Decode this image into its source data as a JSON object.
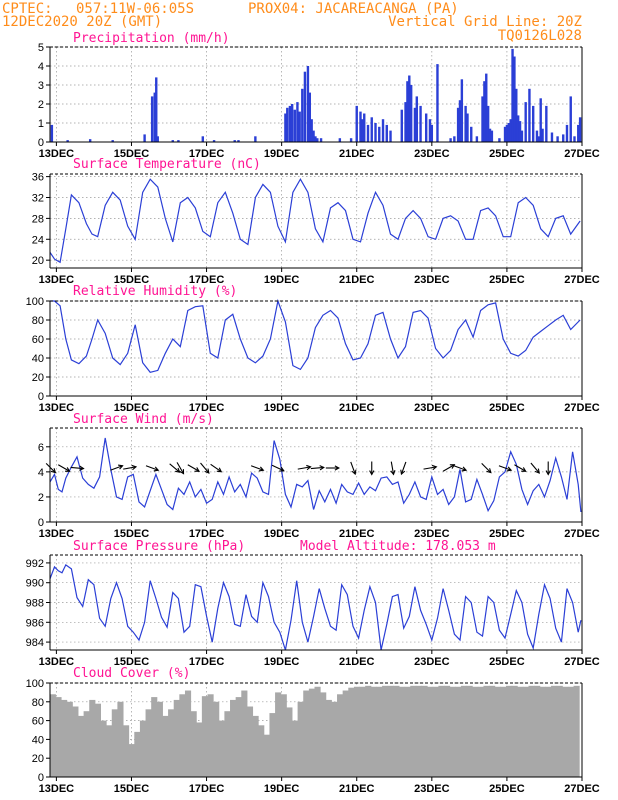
{
  "header": {
    "line1_left": "CPTEC:",
    "line1_coords": "057:11W-06:05S",
    "line1_station": "PROX04: JACAREACANGA (PA)",
    "line2_left": "12DEC2020 20Z (GMT)",
    "line2_right": "Vertical Grid Line: 20Z",
    "line3_right": "TQ0126L028"
  },
  "x_axis": {
    "ticks": [
      "13DEC",
      "15DEC",
      "17DEC",
      "19DEC",
      "21DEC",
      "23DEC",
      "25DEC",
      "27DEC"
    ],
    "tick_days": [
      13,
      15,
      17,
      19,
      21,
      23,
      25,
      27
    ],
    "start_day": 12.83,
    "end_day": 27.0
  },
  "colors": {
    "header": "#ff8c1a",
    "title": "#ff1493",
    "series": "#2b3fd6",
    "cloud": "#a8a8a8"
  },
  "chart_data": [
    {
      "type": "bar",
      "title": "Precipitation (mm/h)",
      "ylim": [
        0,
        5
      ],
      "yticks": [
        0,
        1,
        2,
        3,
        4,
        5
      ],
      "x": [
        12.88,
        13.3,
        13.9,
        14.5,
        15.35,
        15.55,
        15.62,
        15.66,
        15.7,
        16.1,
        16.25,
        16.9,
        17.2,
        17.75,
        17.85,
        18.3,
        19.1,
        19.15,
        19.22,
        19.28,
        19.35,
        19.42,
        19.48,
        19.55,
        19.62,
        19.7,
        19.75,
        19.8,
        19.85,
        19.9,
        19.95,
        20.05,
        20.55,
        20.85,
        21.0,
        21.1,
        21.15,
        21.2,
        21.3,
        21.4,
        21.5,
        21.6,
        21.7,
        21.8,
        21.9,
        22.2,
        22.3,
        22.35,
        22.4,
        22.45,
        22.55,
        22.6,
        22.7,
        22.85,
        22.95,
        23.0,
        23.15,
        23.5,
        23.6,
        23.7,
        23.75,
        23.8,
        23.9,
        23.95,
        24.05,
        24.2,
        24.35,
        24.4,
        24.45,
        24.5,
        24.55,
        24.6,
        24.8,
        24.95,
        25.0,
        25.05,
        25.1,
        25.15,
        25.2,
        25.25,
        25.3,
        25.35,
        25.4,
        25.5,
        25.6,
        25.7,
        25.8,
        25.85,
        25.9,
        25.95,
        26.05,
        26.2,
        26.35,
        26.5,
        26.6,
        26.7,
        26.8,
        26.9,
        26.95
      ],
      "values": [
        0.9,
        0.1,
        0.15,
        0.1,
        0.4,
        2.4,
        2.6,
        3.4,
        0.3,
        0.1,
        0.1,
        0.3,
        0.1,
        0.1,
        0.1,
        0.3,
        1.5,
        1.8,
        1.9,
        2.0,
        1.7,
        2.1,
        1.6,
        2.8,
        3.7,
        4.0,
        2.6,
        1.2,
        0.6,
        0.3,
        0.2,
        0.2,
        0.2,
        0.2,
        1.9,
        1.6,
        1.2,
        1.5,
        0.9,
        1.3,
        1.0,
        0.8,
        1.2,
        0.9,
        0.6,
        1.7,
        2.1,
        3.2,
        3.5,
        3.0,
        1.8,
        2.4,
        1.9,
        1.5,
        1.2,
        0.9,
        4.1,
        0.2,
        0.3,
        1.8,
        2.2,
        3.3,
        1.9,
        1.5,
        0.8,
        0.3,
        2.4,
        3.2,
        3.6,
        1.9,
        0.7,
        0.6,
        0.2,
        0.8,
        0.9,
        1.0,
        1.2,
        4.9,
        4.5,
        2.8,
        1.4,
        1.1,
        0.6,
        2.1,
        2.8,
        1.9,
        0.6,
        0.3,
        2.3,
        0.7,
        1.9,
        0.5,
        0.3,
        0.4,
        0.9,
        2.4,
        0.3,
        0.9,
        1.3
      ]
    },
    {
      "type": "line",
      "title": "Surface Temperature (nC)",
      "ylim": [
        18.5,
        36.5
      ],
      "yticks": [
        20,
        24,
        28,
        32,
        36
      ],
      "x": [
        12.83,
        12.95,
        13.1,
        13.25,
        13.4,
        13.6,
        13.8,
        13.95,
        14.1,
        14.3,
        14.5,
        14.7,
        14.9,
        15.1,
        15.3,
        15.5,
        15.7,
        15.9,
        16.1,
        16.3,
        16.5,
        16.7,
        16.9,
        17.1,
        17.3,
        17.5,
        17.7,
        17.9,
        18.1,
        18.3,
        18.5,
        18.7,
        18.9,
        19.1,
        19.3,
        19.5,
        19.7,
        19.9,
        20.1,
        20.3,
        20.5,
        20.7,
        20.9,
        21.1,
        21.3,
        21.5,
        21.7,
        21.9,
        22.1,
        22.3,
        22.5,
        22.7,
        22.9,
        23.1,
        23.3,
        23.5,
        23.7,
        23.9,
        24.1,
        24.3,
        24.5,
        24.7,
        24.9,
        25.1,
        25.3,
        25.5,
        25.7,
        25.9,
        26.1,
        26.3,
        26.5,
        26.7,
        26.95
      ],
      "values": [
        21.5,
        20.2,
        19.6,
        26.0,
        32.5,
        31.0,
        27.0,
        25.0,
        24.5,
        30.5,
        33.0,
        31.5,
        26.5,
        24.0,
        33.0,
        35.5,
        34.0,
        28.0,
        23.5,
        31.0,
        32.0,
        30.0,
        25.5,
        24.5,
        31.0,
        33.0,
        29.0,
        24.0,
        23.0,
        32.0,
        34.5,
        33.0,
        26.5,
        23.5,
        33.0,
        35.5,
        33.0,
        26.0,
        23.5,
        30.0,
        31.0,
        29.5,
        24.0,
        23.5,
        29.0,
        33.0,
        30.5,
        25.0,
        24.0,
        28.0,
        29.5,
        28.0,
        24.5,
        24.0,
        28.0,
        28.5,
        27.5,
        24.0,
        24.0,
        29.5,
        30.0,
        28.5,
        24.5,
        24.5,
        31.0,
        32.0,
        30.5,
        26.0,
        24.5,
        28.0,
        28.5,
        25.0,
        27.5
      ]
    },
    {
      "type": "line",
      "title": "Relative Humidity (%)",
      "ylim": [
        0,
        100
      ],
      "yticks": [
        0,
        20,
        40,
        60,
        80,
        100
      ],
      "x": [
        12.83,
        12.95,
        13.1,
        13.25,
        13.4,
        13.6,
        13.8,
        13.95,
        14.1,
        14.3,
        14.5,
        14.7,
        14.9,
        15.1,
        15.3,
        15.5,
        15.7,
        15.9,
        16.1,
        16.3,
        16.5,
        16.7,
        16.9,
        17.1,
        17.3,
        17.5,
        17.7,
        17.9,
        18.1,
        18.3,
        18.5,
        18.7,
        18.9,
        19.1,
        19.3,
        19.5,
        19.7,
        19.9,
        20.1,
        20.3,
        20.5,
        20.7,
        20.9,
        21.1,
        21.3,
        21.5,
        21.7,
        21.9,
        22.1,
        22.3,
        22.5,
        22.7,
        22.9,
        23.1,
        23.3,
        23.5,
        23.7,
        23.9,
        24.1,
        24.3,
        24.5,
        24.7,
        24.9,
        25.1,
        25.3,
        25.5,
        25.7,
        25.9,
        26.1,
        26.3,
        26.5,
        26.7,
        26.95
      ],
      "values": [
        100,
        100,
        95,
        60,
        38,
        34,
        42,
        60,
        80,
        66,
        40,
        33,
        45,
        75,
        35,
        25,
        27,
        45,
        60,
        52,
        90,
        94,
        95,
        45,
        40,
        80,
        86,
        60,
        40,
        35,
        42,
        60,
        100,
        78,
        32,
        28,
        40,
        72,
        85,
        90,
        82,
        55,
        38,
        40,
        55,
        85,
        88,
        60,
        40,
        52,
        88,
        90,
        82,
        50,
        40,
        48,
        70,
        80,
        62,
        90,
        96,
        98,
        60,
        45,
        42,
        48,
        62,
        68,
        74,
        80,
        85,
        70,
        80
      ]
    },
    {
      "type": "line",
      "title": "Surface Wind (m/s)",
      "ylim": [
        0,
        7.5
      ],
      "yticks": [
        0,
        2,
        4,
        6
      ],
      "x": [
        12.83,
        12.95,
        13.05,
        13.15,
        13.25,
        13.4,
        13.55,
        13.7,
        13.85,
        14.0,
        14.15,
        14.3,
        14.45,
        14.6,
        14.75,
        14.9,
        15.05,
        15.2,
        15.35,
        15.5,
        15.65,
        15.8,
        15.95,
        16.1,
        16.25,
        16.4,
        16.55,
        16.7,
        16.85,
        17.0,
        17.15,
        17.3,
        17.45,
        17.6,
        17.75,
        17.9,
        18.05,
        18.2,
        18.35,
        18.5,
        18.65,
        18.8,
        18.95,
        19.1,
        19.25,
        19.4,
        19.55,
        19.7,
        19.85,
        20.0,
        20.15,
        20.3,
        20.45,
        20.6,
        20.75,
        20.9,
        21.05,
        21.2,
        21.35,
        21.5,
        21.65,
        21.8,
        21.95,
        22.1,
        22.25,
        22.4,
        22.55,
        22.7,
        22.85,
        23.0,
        23.15,
        23.3,
        23.45,
        23.6,
        23.75,
        23.9,
        24.05,
        24.2,
        24.35,
        24.5,
        24.65,
        24.8,
        24.95,
        25.1,
        25.25,
        25.4,
        25.55,
        25.7,
        25.85,
        26.0,
        26.15,
        26.3,
        26.45,
        26.6,
        26.75,
        26.9,
        26.97
      ],
      "values": [
        3.2,
        3.8,
        2.6,
        2.4,
        3.5,
        4.4,
        5.2,
        3.5,
        3.0,
        2.7,
        3.6,
        6.7,
        4.2,
        2.0,
        1.8,
        3.6,
        3.8,
        1.6,
        1.2,
        2.5,
        3.8,
        2.6,
        1.4,
        1.0,
        2.7,
        2.2,
        3.2,
        2.0,
        2.6,
        1.5,
        1.8,
        3.2,
        2.2,
        3.6,
        2.4,
        3.0,
        2.0,
        3.9,
        3.5,
        2.4,
        2.2,
        6.5,
        5.0,
        2.2,
        1.2,
        3.0,
        2.8,
        3.3,
        1.0,
        2.5,
        1.6,
        2.6,
        1.5,
        3.0,
        2.4,
        2.2,
        3.1,
        2.2,
        2.8,
        2.5,
        3.5,
        3.6,
        3.0,
        3.2,
        1.5,
        2.2,
        3.2,
        2.0,
        1.8,
        3.6,
        2.2,
        2.6,
        1.4,
        2.0,
        4.2,
        1.6,
        1.8,
        3.4,
        2.2,
        0.9,
        1.7,
        3.6,
        4.0,
        5.6,
        4.6,
        2.6,
        1.4,
        2.5,
        3.0,
        2.0,
        3.3,
        5.1,
        3.6,
        1.8,
        5.6,
        3.0,
        0.8
      ]
    },
    {
      "type": "line",
      "title": "Surface Pressure (hPa)",
      "subtitle": "Model Altitude: 178.053 m",
      "ylim": [
        983.2,
        992.8
      ],
      "yticks": [
        984,
        986,
        988,
        990,
        992
      ],
      "x": [
        12.83,
        12.95,
        13.05,
        13.15,
        13.25,
        13.4,
        13.55,
        13.7,
        13.85,
        14.0,
        14.15,
        14.3,
        14.45,
        14.6,
        14.75,
        14.9,
        15.05,
        15.2,
        15.35,
        15.5,
        15.65,
        15.8,
        15.95,
        16.1,
        16.25,
        16.4,
        16.55,
        16.7,
        16.85,
        17.0,
        17.15,
        17.3,
        17.45,
        17.6,
        17.75,
        17.9,
        18.05,
        18.2,
        18.35,
        18.5,
        18.65,
        18.8,
        18.95,
        19.1,
        19.25,
        19.4,
        19.55,
        19.7,
        19.85,
        20.0,
        20.15,
        20.3,
        20.45,
        20.6,
        20.75,
        20.9,
        21.05,
        21.2,
        21.35,
        21.5,
        21.65,
        21.8,
        21.95,
        22.1,
        22.25,
        22.4,
        22.55,
        22.7,
        22.85,
        23.0,
        23.15,
        23.3,
        23.45,
        23.6,
        23.75,
        23.9,
        24.05,
        24.2,
        24.35,
        24.5,
        24.65,
        24.8,
        24.95,
        25.1,
        25.25,
        25.4,
        25.55,
        25.7,
        25.85,
        26.0,
        26.15,
        26.3,
        26.45,
        26.6,
        26.75,
        26.9,
        26.97
      ],
      "values": [
        990.4,
        991.6,
        991.2,
        991.0,
        991.8,
        991.4,
        988.5,
        987.6,
        990.3,
        989.8,
        986.4,
        985.6,
        988.4,
        990.0,
        988.4,
        985.6,
        985.0,
        984.2,
        986.0,
        990.2,
        988.4,
        986.5,
        985.5,
        989.0,
        988.4,
        985.0,
        985.6,
        989.8,
        989.6,
        986.6,
        984.0,
        987.4,
        990.0,
        988.6,
        985.8,
        985.6,
        988.8,
        986.6,
        986.0,
        990.0,
        988.6,
        986.0,
        985.0,
        983.2,
        986.2,
        990.2,
        986.0,
        984.0,
        986.6,
        989.4,
        987.4,
        985.6,
        985.2,
        989.8,
        988.8,
        985.6,
        984.4,
        987.2,
        989.6,
        988.0,
        983.2,
        985.8,
        988.6,
        988.8,
        985.4,
        986.6,
        989.6,
        987.2,
        985.8,
        984.2,
        986.4,
        989.4,
        987.2,
        984.8,
        984.2,
        988.6,
        988.0,
        985.0,
        984.6,
        988.6,
        988.0,
        985.2,
        984.4,
        986.8,
        989.2,
        988.0,
        984.8,
        983.4,
        986.8,
        989.8,
        988.4,
        985.4,
        984.0,
        989.4,
        988.0,
        985.0,
        986.2
      ]
    },
    {
      "type": "bar",
      "title": "Cloud Cover (%)",
      "ylim": [
        0,
        100
      ],
      "yticks": [
        0,
        20,
        40,
        60,
        80,
        100
      ],
      "x": [
        12.9,
        13.05,
        13.2,
        13.35,
        13.5,
        13.65,
        13.8,
        13.95,
        14.1,
        14.25,
        14.4,
        14.55,
        14.7,
        14.85,
        15.0,
        15.15,
        15.3,
        15.45,
        15.6,
        15.75,
        15.9,
        16.05,
        16.2,
        16.35,
        16.5,
        16.65,
        16.8,
        16.95,
        17.1,
        17.25,
        17.4,
        17.55,
        17.7,
        17.85,
        18.0,
        18.15,
        18.3,
        18.45,
        18.6,
        18.75,
        18.9,
        19.05,
        19.2,
        19.35,
        19.5,
        19.65,
        19.8,
        19.95,
        20.1,
        20.25,
        20.4,
        20.55,
        20.7,
        20.85,
        21.0,
        21.15,
        21.3,
        21.45,
        21.6,
        21.75,
        21.9,
        22.05,
        22.2,
        22.35,
        22.5,
        22.65,
        22.8,
        22.95,
        23.1,
        23.25,
        23.4,
        23.55,
        23.7,
        23.85,
        24.0,
        24.15,
        24.3,
        24.45,
        24.6,
        24.75,
        24.9,
        25.05,
        25.2,
        25.35,
        25.5,
        25.65,
        25.8,
        25.95,
        26.1,
        26.25,
        26.4,
        26.55,
        26.7,
        26.85
      ],
      "values": [
        88,
        85,
        82,
        80,
        75,
        65,
        70,
        82,
        78,
        60,
        55,
        72,
        80,
        55,
        35,
        48,
        60,
        72,
        85,
        80,
        65,
        72,
        82,
        88,
        92,
        70,
        58,
        86,
        88,
        80,
        60,
        70,
        82,
        85,
        92,
        75,
        65,
        55,
        45,
        68,
        90,
        88,
        74,
        60,
        80,
        92,
        94,
        96,
        90,
        82,
        80,
        88,
        92,
        95,
        96,
        96,
        97,
        96,
        96,
        97,
        97,
        97,
        96,
        96,
        97,
        97,
        97,
        96,
        96,
        97,
        97,
        96,
        96,
        97,
        97,
        96,
        96,
        97,
        97,
        96,
        96,
        97,
        97,
        96,
        96,
        97,
        97,
        96,
        96,
        97,
        97,
        96,
        96,
        97
      ]
    }
  ],
  "wind_arrows": {
    "x": [
      12.85,
      13.2,
      13.55,
      14.6,
      14.95,
      15.55,
      16.15,
      16.3,
      16.65,
      16.95,
      17.25,
      18.35,
      18.9,
      19.6,
      19.95,
      20.35,
      20.9,
      21.4,
      21.95,
      22.25,
      22.95,
      23.45,
      23.75,
      24.45,
      24.95,
      25.35,
      25.75,
      26.1
    ],
    "direction_deg": [
      135,
      120,
      95,
      70,
      80,
      110,
      130,
      150,
      120,
      140,
      125,
      110,
      115,
      80,
      85,
      90,
      160,
      180,
      170,
      200,
      80,
      60,
      110,
      135,
      110,
      120,
      140,
      180
    ]
  }
}
